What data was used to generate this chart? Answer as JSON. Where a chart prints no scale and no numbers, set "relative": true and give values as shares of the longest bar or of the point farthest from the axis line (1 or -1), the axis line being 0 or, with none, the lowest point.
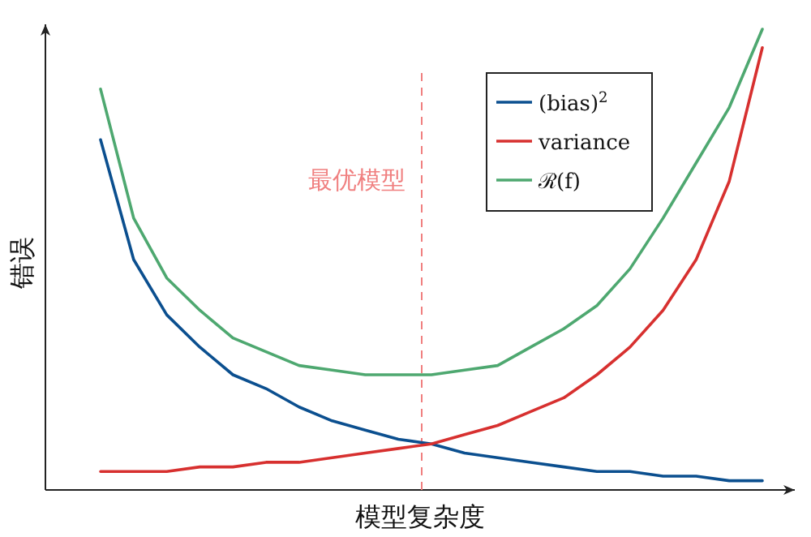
{
  "chart_data": {
    "type": "line",
    "xlabel": "模型复杂度",
    "ylabel": "错误",
    "relative": true,
    "legend": "top right",
    "categories": [
      null,
      null,
      null,
      null,
      null,
      null,
      null,
      null,
      null,
      null,
      null,
      null,
      null,
      null,
      null,
      null,
      null,
      null,
      null,
      null,
      null
    ],
    "series": [
      {
        "name": "(bias)$^{2}$",
        "color": "#0b4f8f",
        "values": [
          0.76,
          0.5,
          0.38,
          0.31,
          0.25,
          0.22,
          0.18,
          0.15,
          0.13,
          0.11,
          0.1,
          0.08,
          0.07,
          0.06,
          0.05,
          0.04,
          0.04,
          0.03,
          0.03,
          0.02,
          0.02
        ]
      },
      {
        "name": "variance",
        "color": "#d7302f",
        "values": [
          0.04,
          0.04,
          0.04,
          0.05,
          0.05,
          0.06,
          0.06,
          0.07,
          0.08,
          0.09,
          0.1,
          0.12,
          0.14,
          0.17,
          0.2,
          0.25,
          0.31,
          0.39,
          0.5,
          0.67,
          0.96
        ]
      },
      {
        "name": "ℛ(f)",
        "color": "#4ea870",
        "values": [
          0.87,
          0.59,
          0.46,
          0.39,
          0.33,
          0.3,
          0.27,
          0.26,
          0.25,
          0.25,
          0.25,
          0.26,
          0.27,
          0.31,
          0.35,
          0.4,
          0.48,
          0.59,
          0.71,
          0.83,
          1
        ]
      }
    ],
    "annotations": [
      "最优模型"
    ]
  }
}
